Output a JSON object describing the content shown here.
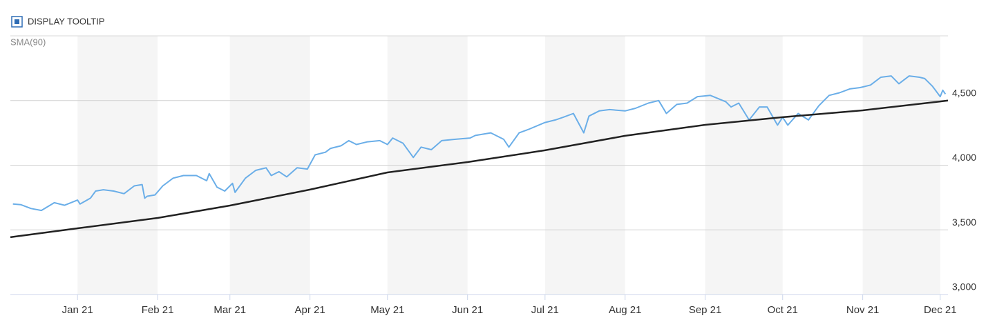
{
  "controls": {
    "tooltip_label": "DISPLAY TOOLTIP"
  },
  "chart_data": {
    "type": "line",
    "xlim": [
      -26,
      337
    ],
    "xticks": [
      {
        "value": 0,
        "label": "Jan 21"
      },
      {
        "value": 31,
        "label": "Feb 21"
      },
      {
        "value": 59,
        "label": "Mar 21"
      },
      {
        "value": 90,
        "label": "Apr 21"
      },
      {
        "value": 120,
        "label": "May 21"
      },
      {
        "value": 151,
        "label": "Jun 21"
      },
      {
        "value": 181,
        "label": "Jul 21"
      },
      {
        "value": 212,
        "label": "Aug 21"
      },
      {
        "value": 243,
        "label": "Sep 21"
      },
      {
        "value": 273,
        "label": "Oct 21"
      },
      {
        "value": 304,
        "label": "Nov 21"
      },
      {
        "value": 334,
        "label": "Dec 21"
      }
    ],
    "ylim": [
      3000,
      5000
    ],
    "yticks": [
      {
        "value": 3000,
        "label": "3,000"
      },
      {
        "value": 3500,
        "label": "3,500"
      },
      {
        "value": 4000,
        "label": "4,000"
      },
      {
        "value": 4500,
        "label": "4,500"
      }
    ],
    "grid": true,
    "bands": true,
    "series": [
      {
        "color": "#6aaee8",
        "x": [
          -25,
          -22,
          -18,
          -14,
          -9,
          -5,
          0,
          1,
          5,
          7,
          10,
          14,
          18,
          22,
          25,
          26,
          27,
          30,
          33,
          37,
          41,
          46,
          50,
          51,
          54,
          57,
          60,
          61,
          65,
          69,
          73,
          75,
          78,
          81,
          85,
          89,
          92,
          96,
          98,
          102,
          105,
          108,
          112,
          117,
          120,
          122,
          126,
          130,
          133,
          137,
          141,
          146,
          152,
          154,
          160,
          165,
          167,
          171,
          175,
          181,
          185,
          188,
          192,
          196,
          198,
          202,
          206,
          212,
          216,
          221,
          225,
          228,
          232,
          236,
          240,
          245,
          251,
          253,
          256,
          260,
          264,
          267,
          271,
          273,
          275,
          279,
          283,
          287,
          291,
          295,
          299,
          303,
          307,
          311,
          315,
          318,
          322,
          326,
          328,
          331,
          334,
          335,
          336
        ],
        "values": [
          3700,
          3695,
          3665,
          3650,
          3710,
          3690,
          3730,
          3700,
          3745,
          3800,
          3810,
          3800,
          3780,
          3840,
          3850,
          3745,
          3760,
          3770,
          3840,
          3900,
          3920,
          3920,
          3880,
          3935,
          3830,
          3800,
          3860,
          3790,
          3900,
          3960,
          3980,
          3920,
          3950,
          3910,
          3980,
          3970,
          4080,
          4100,
          4130,
          4150,
          4190,
          4160,
          4180,
          4190,
          4160,
          4210,
          4170,
          4060,
          4140,
          4120,
          4190,
          4200,
          4210,
          4230,
          4250,
          4200,
          4140,
          4250,
          4280,
          4330,
          4350,
          4370,
          4400,
          4250,
          4380,
          4420,
          4430,
          4420,
          4440,
          4480,
          4500,
          4400,
          4470,
          4480,
          4530,
          4540,
          4490,
          4450,
          4480,
          4350,
          4450,
          4450,
          4310,
          4370,
          4310,
          4400,
          4350,
          4460,
          4540,
          4560,
          4590,
          4600,
          4620,
          4680,
          4690,
          4630,
          4690,
          4680,
          4670,
          4610,
          4530,
          4580,
          4550
        ]
      },
      {
        "name": "SMA(90)",
        "color": "#222222",
        "x": [
          -26,
          0,
          31,
          59,
          90,
          120,
          151,
          181,
          212,
          243,
          273,
          304,
          334,
          337
        ],
        "values": [
          3443,
          3512,
          3592,
          3688,
          3811,
          3944,
          4024,
          4115,
          4227,
          4312,
          4371,
          4424,
          4493,
          4500
        ]
      }
    ]
  }
}
